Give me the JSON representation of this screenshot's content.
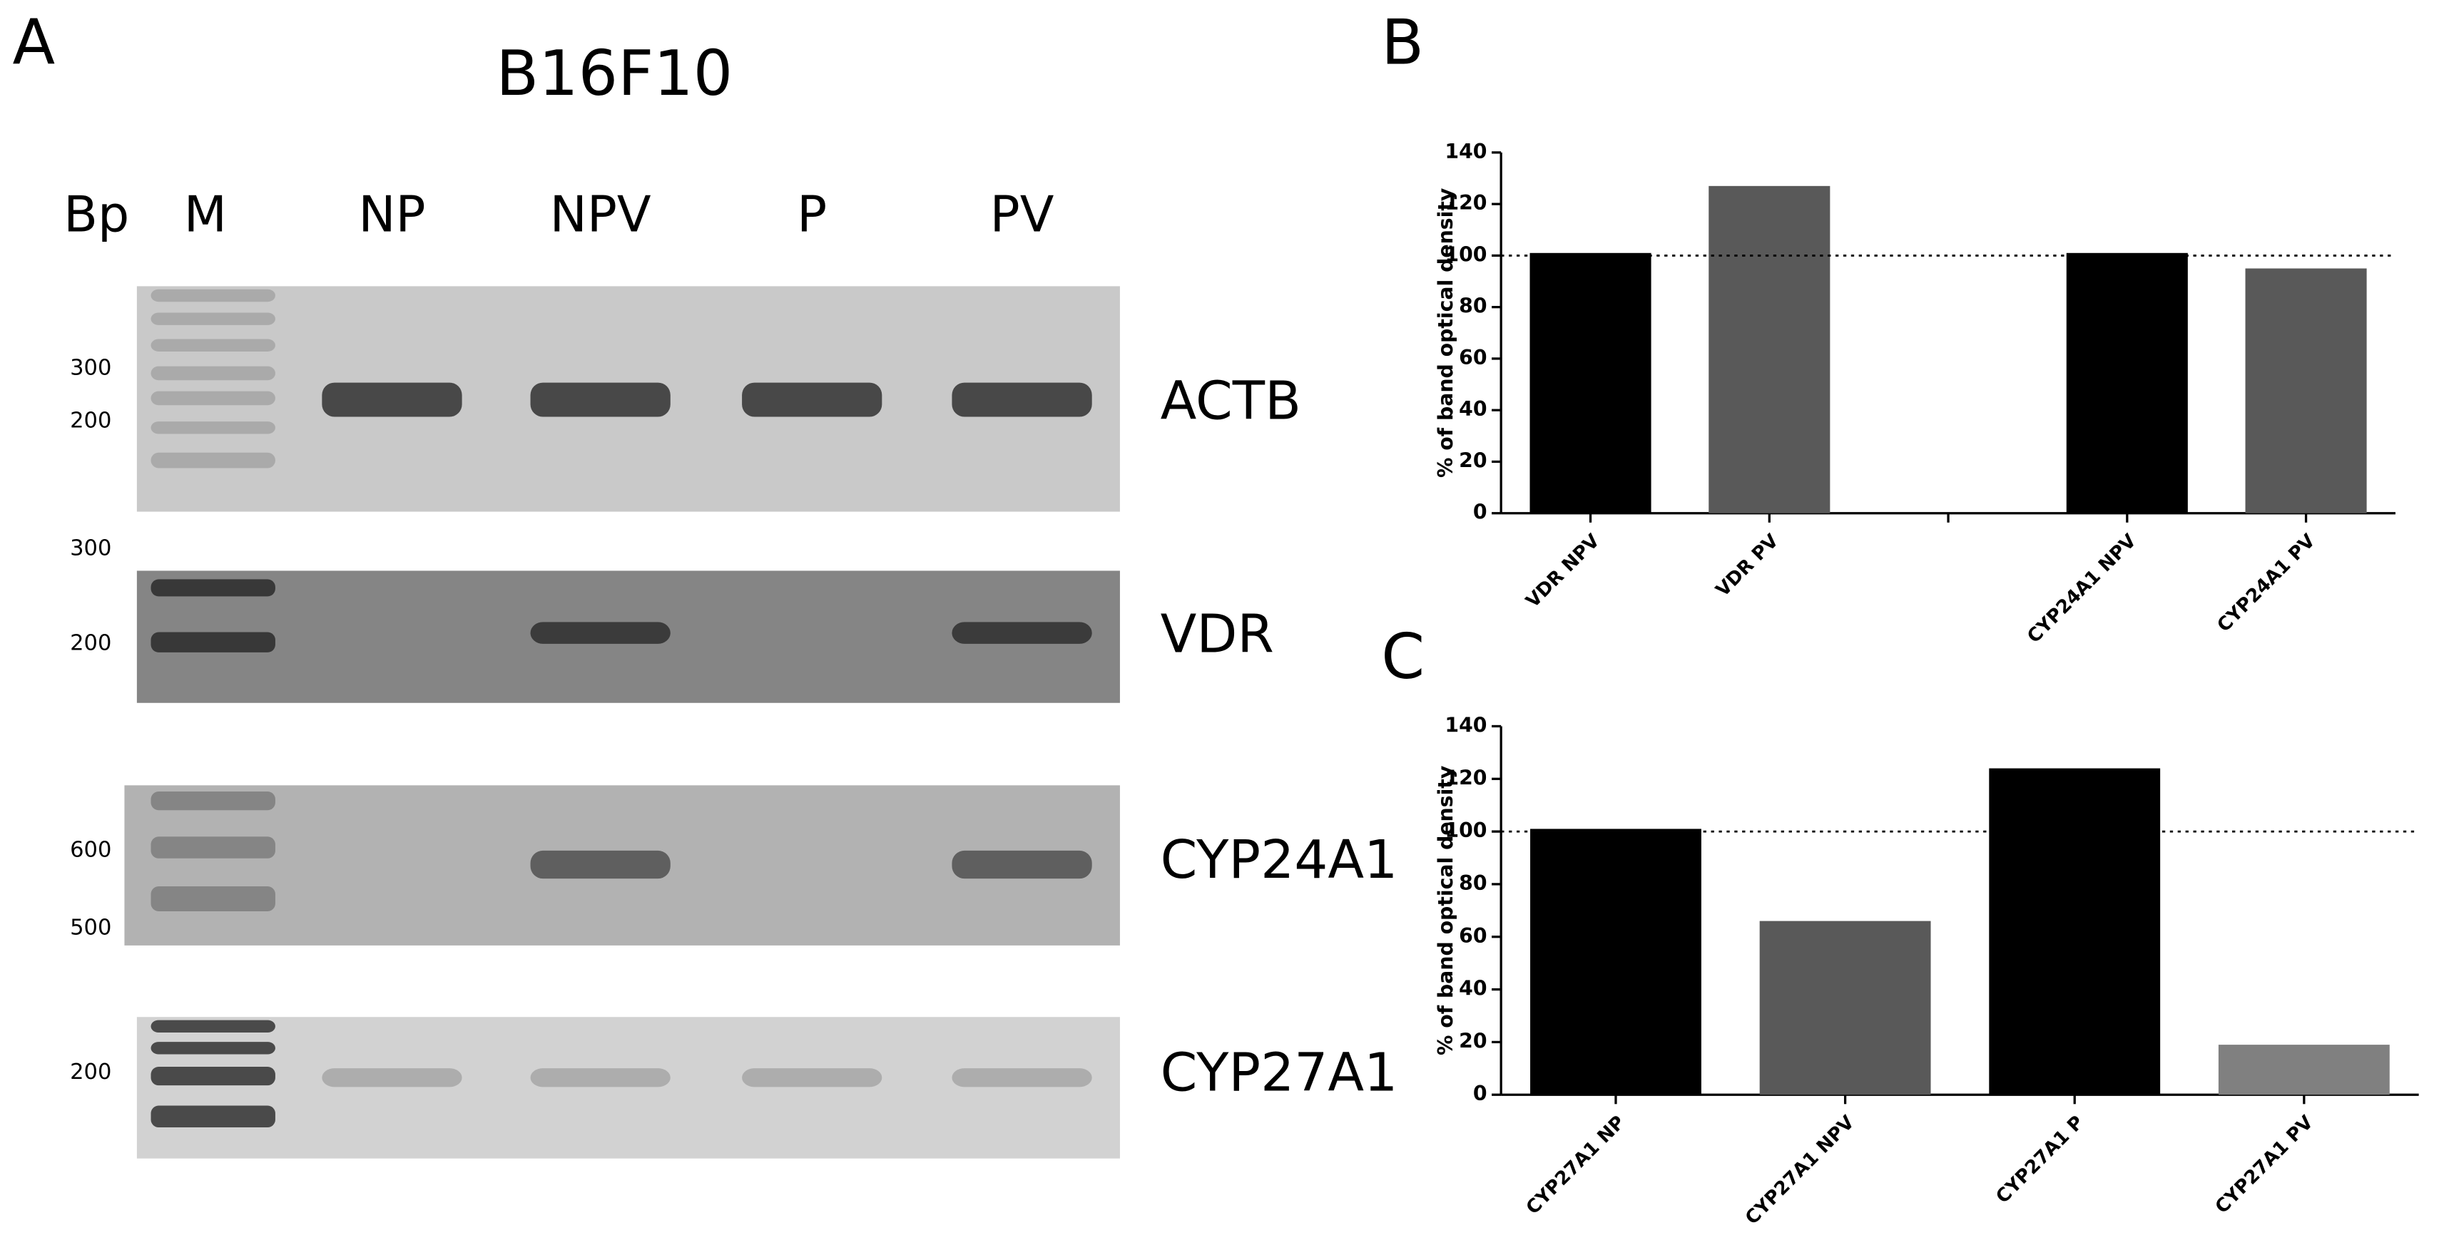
{
  "gel": {
    "panel_label": "A",
    "title": "B16F10",
    "bp_header": "Bp",
    "lanes": [
      "M",
      "NP",
      "NPV",
      "P",
      "PV"
    ],
    "rows": [
      {
        "gene": "ACTB",
        "markers": [
          300,
          200
        ]
      },
      {
        "gene": "VDR",
        "markers": [
          300,
          200
        ]
      },
      {
        "gene": "CYP24A1",
        "markers": [
          600,
          500
        ]
      },
      {
        "gene": "CYP27A1",
        "markers": [
          200
        ]
      }
    ]
  },
  "chart_data": [
    {
      "type": "bar",
      "panel_label": "B",
      "y_label": "% of band optical density",
      "categories": [
        "VDR NPV",
        "VDR PV",
        null,
        "CYP24A1 NPV",
        "CYP24A1 PV"
      ],
      "values": [
        101,
        127,
        null,
        101,
        95
      ],
      "colors": [
        "#000000",
        "#595959",
        null,
        "#000000",
        "#595959"
      ],
      "ylim": [
        0,
        140
      ],
      "yticks": [
        0,
        20,
        40,
        60,
        80,
        100,
        120,
        140
      ],
      "reference_line": 100
    },
    {
      "type": "bar",
      "panel_label": "C",
      "y_label": "% of band optical density",
      "categories": [
        "CYP27A1 NP",
        "CYP27A1 NPV",
        "CYP27A1 P",
        "CYP27A1 PV"
      ],
      "values": [
        101,
        66,
        124,
        19
      ],
      "colors": [
        "#000000",
        "#595959",
        "#000000",
        "#808080"
      ],
      "ylim": [
        0,
        140
      ],
      "yticks": [
        0,
        20,
        40,
        60,
        80,
        100,
        120,
        140
      ],
      "reference_line": 100
    }
  ]
}
